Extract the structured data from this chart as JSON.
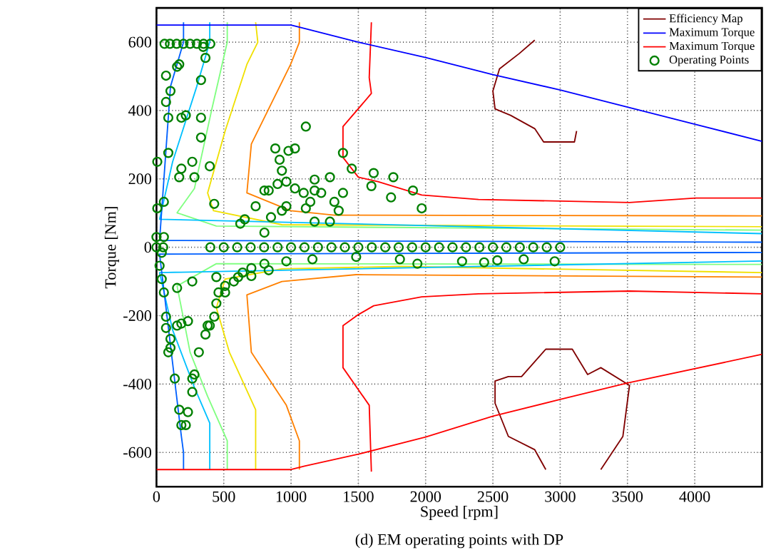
{
  "chart_data": {
    "type": "line",
    "xlabel": "Speed [rpm]",
    "ylabel": "Torque [Nm]",
    "xlim": [
      0,
      4500
    ],
    "ylim": [
      -700,
      700
    ],
    "xticks": [
      0,
      500,
      1000,
      1500,
      2000,
      2500,
      3000,
      3500,
      4000
    ],
    "yticks": [
      -600,
      -400,
      -200,
      0,
      200,
      400,
      600
    ],
    "grid": true,
    "legend": "top right",
    "annotations": [
      "(d) EM operating points with DP"
    ],
    "series": [
      {
        "name": "Efficiency Map",
        "color": "#800000",
        "x": [
          2811,
          2697,
          2549,
          2500,
          2516,
          2631,
          2811,
          2877,
          3106,
          3122
        ],
        "values": [
          606,
          567,
          522,
          457,
          405,
          386,
          347,
          308,
          308,
          340
        ]
      },
      {
        "color": "#800000",
        "x": [
          2893,
          2811,
          2615,
          2516,
          2516,
          2615,
          2713,
          2893,
          3090,
          3204,
          3302,
          3515,
          3466,
          3302
        ],
        "values": [
          -650,
          -592,
          -553,
          -456,
          -391,
          -378,
          -378,
          -298,
          -298,
          -372,
          -352,
          -404,
          -553,
          -650
        ]
      },
      {
        "color": "#ff0000",
        "x": [
          1597,
          1581,
          1597,
          1386,
          1386,
          1500,
          1646,
          1971,
          2393,
          3515,
          4006,
          4500
        ],
        "values": [
          658,
          496,
          450,
          353,
          263,
          205,
          192,
          153,
          140,
          131,
          144,
          144
        ]
      },
      {
        "color": "#ff0000",
        "x": [
          1597,
          1581,
          1386,
          1386,
          1500,
          1614,
          1971,
          2393,
          3515,
          4500
        ],
        "values": [
          -656,
          -462,
          -352,
          -229,
          -197,
          -171,
          -145,
          -136,
          -128,
          -136
        ]
      },
      {
        "color": "#ff8000",
        "x": [
          1062,
          1062,
          997,
          705,
          672,
          997,
          1322,
          4500
        ],
        "values": [
          658,
          600,
          535,
          302,
          159,
          107,
          94,
          92
        ]
      },
      {
        "color": "#ff8000",
        "x": [
          1062,
          1062,
          965,
          705,
          672,
          932,
          1484,
          4500
        ],
        "values": [
          -650,
          -566,
          -462,
          -307,
          -139,
          -100,
          -80,
          -87
        ]
      },
      {
        "color": "#f0e000",
        "x": [
          737,
          753,
          672,
          510,
          380,
          424,
          932,
          4500
        ],
        "values": [
          658,
          600,
          535,
          340,
          159,
          107,
          66,
          60
        ]
      },
      {
        "color": "#f0e000",
        "x": [
          737,
          737,
          542,
          445,
          510,
          932,
          1809,
          4500
        ],
        "values": [
          -650,
          -475,
          -307,
          -177,
          -93,
          -63,
          -56,
          -74
        ]
      },
      {
        "color": "#80ff80",
        "x": [
          526,
          526,
          412,
          282,
          153,
          445,
          4500
        ],
        "values": [
          658,
          600,
          405,
          172,
          101,
          62,
          50
        ]
      },
      {
        "color": "#80ff80",
        "x": [
          526,
          526,
          380,
          250,
          153,
          445,
          4500
        ],
        "values": [
          -650,
          -566,
          -436,
          -307,
          -113,
          -48,
          -50
        ]
      },
      {
        "color": "#00c0ff",
        "x": [
          396,
          396,
          299,
          120,
          23,
          4500
        ],
        "values": [
          658,
          600,
          470,
          250,
          82,
          40
        ]
      },
      {
        "color": "#00c0ff",
        "x": [
          396,
          396,
          282,
          120,
          23,
          4500
        ],
        "values": [
          -650,
          -514,
          -410,
          -242,
          -74,
          -40
        ]
      },
      {
        "color": "#0060ff",
        "x": [
          201,
          201,
          104,
          23,
          4500
        ],
        "values": [
          658,
          600,
          470,
          20,
          15
        ]
      },
      {
        "color": "#0060ff",
        "x": [
          201,
          201,
          185,
          23,
          4500
        ],
        "values": [
          -650,
          -600,
          -553,
          -20,
          -15
        ]
      },
      {
        "name": "Maximum Torque",
        "color": "#0000ff",
        "x": [
          0,
          1000,
          1100,
          1500,
          2000,
          2500,
          3000,
          3500,
          4000,
          4500
        ],
        "values": [
          650,
          650,
          640,
          600,
          555,
          505,
          460,
          410,
          360,
          310
        ]
      },
      {
        "name": "Maximum Torque",
        "color": "#ff0000",
        "x": [
          0,
          1000,
          1100,
          1500,
          2000,
          2500,
          3000,
          3500,
          4000,
          4500
        ],
        "values": [
          -650,
          -650,
          -640,
          -605,
          -555,
          -494,
          -445,
          -397,
          -355,
          -313
        ]
      },
      {
        "name": "Operating Points",
        "type": "scatter",
        "marker": "circle",
        "color": "#008000",
        "x": [
          60,
          100,
          150,
          200,
          250,
          300,
          350,
          400,
          169,
          153,
          71,
          104,
          71,
          88,
          185,
          218,
          331,
          331,
          331,
          88,
          6,
          185,
          169,
          282,
          266,
          396,
          55,
          6,
          429,
          364,
          347,
          1110,
          883,
          981,
          1029,
          915,
          932,
          900,
          802,
          834,
          965,
          965,
          932,
          851,
          737,
          656,
          623,
          1029,
          1094,
          1175,
          1175,
          1224,
          1143,
          1110,
          1175,
          1289,
          1386,
          1322,
          1354,
          1289,
          1386,
          1451,
          1614,
          1760,
          1597,
          1743,
          1906,
          1971,
          802,
          0,
          55,
          0,
          50,
          400,
          500,
          600,
          700,
          800,
          900,
          1000,
          1100,
          1200,
          1300,
          1400,
          1500,
          1600,
          1700,
          1800,
          1900,
          2000,
          2100,
          2200,
          2300,
          2400,
          2500,
          2600,
          2700,
          2800,
          2900,
          3000,
          445,
          461,
          510,
          575,
          640,
          705,
          802,
          965,
          1159,
          1484,
          1809,
          1939,
          2271,
          2435,
          2533,
          2729,
          2959,
          607,
          705,
          510,
          834,
          445,
          429,
          39,
          23,
          39,
          55,
          153,
          266,
          71,
          71,
          153,
          185,
          234,
          104,
          104,
          88,
          136,
          266,
          315,
          364,
          396,
          282,
          266,
          169,
          234,
          185,
          218,
          380
        ],
        "values": [
          595,
          595,
          595,
          595,
          595,
          595,
          595,
          595,
          535,
          528,
          502,
          457,
          425,
          379,
          379,
          386,
          379,
          489,
          321,
          276,
          250,
          230,
          205,
          205,
          250,
          237,
          133,
          114,
          127,
          554,
          586,
          353,
          289,
          282,
          289,
          256,
          224,
          185,
          166,
          166,
          192,
          120,
          107,
          88,
          120,
          82,
          69,
          172,
          159,
          198,
          166,
          159,
          133,
          114,
          75,
          205,
          159,
          133,
          107,
          75,
          276,
          230,
          217,
          205,
          179,
          146,
          166,
          114,
          43,
          30,
          30,
          0,
          0,
          0,
          0,
          0,
          0,
          0,
          0,
          0,
          0,
          0,
          0,
          0,
          0,
          0,
          0,
          0,
          0,
          0,
          0,
          0,
          0,
          0,
          0,
          0,
          0,
          0,
          0,
          0,
          -87,
          -132,
          -113,
          -100,
          -74,
          -61,
          -48,
          -41,
          -35,
          -28,
          -35,
          -48,
          -41,
          -44,
          -38,
          -35,
          -41,
          -87,
          -84,
          -132,
          -67,
          -164,
          -203,
          -16,
          -54,
          -93,
          -132,
          -119,
          -100,
          -203,
          -236,
          -229,
          -223,
          -216,
          -268,
          -294,
          -307,
          -384,
          -384,
          -307,
          -255,
          -229,
          -372,
          -423,
          -475,
          -482,
          -520,
          -520,
          -229
        ]
      }
    ]
  }
}
